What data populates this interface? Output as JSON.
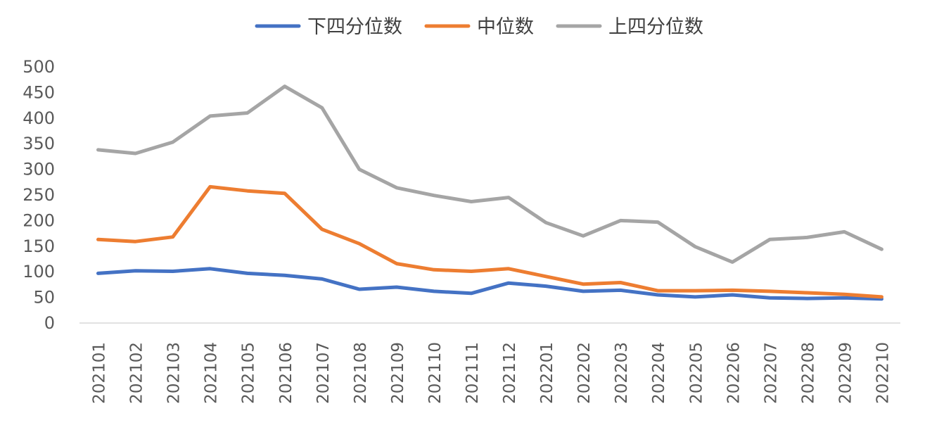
{
  "chart_data": {
    "type": "line",
    "title": "",
    "xlabel": "",
    "ylabel": "",
    "ylim": [
      0,
      500
    ],
    "yticks": [
      0,
      50,
      100,
      150,
      200,
      250,
      300,
      350,
      400,
      450,
      500
    ],
    "legend_position": "top-center",
    "grid": false,
    "categories": [
      "202101",
      "202102",
      "202103",
      "202104",
      "202105",
      "202106",
      "202107",
      "202108",
      "202109",
      "202110",
      "202111",
      "202112",
      "202201",
      "202202",
      "202203",
      "202204",
      "202205",
      "202206",
      "202207",
      "202208",
      "202209",
      "202210"
    ],
    "series": [
      {
        "name": "下四分位数",
        "color": "#4472c4",
        "values": [
          97,
          102,
          101,
          106,
          97,
          93,
          86,
          66,
          70,
          62,
          58,
          78,
          72,
          62,
          64,
          55,
          51,
          55,
          49,
          48,
          49,
          47
        ]
      },
      {
        "name": "中位数",
        "color": "#ed7d31",
        "values": [
          163,
          159,
          168,
          266,
          258,
          253,
          183,
          155,
          116,
          104,
          101,
          106,
          91,
          76,
          79,
          63,
          63,
          64,
          62,
          59,
          56,
          51
        ]
      },
      {
        "name": "上四分位数",
        "color": "#a5a5a5",
        "values": [
          338,
          331,
          353,
          404,
          410,
          462,
          420,
          300,
          264,
          249,
          237,
          245,
          196,
          170,
          200,
          197,
          149,
          119,
          163,
          167,
          178,
          144
        ]
      }
    ]
  }
}
